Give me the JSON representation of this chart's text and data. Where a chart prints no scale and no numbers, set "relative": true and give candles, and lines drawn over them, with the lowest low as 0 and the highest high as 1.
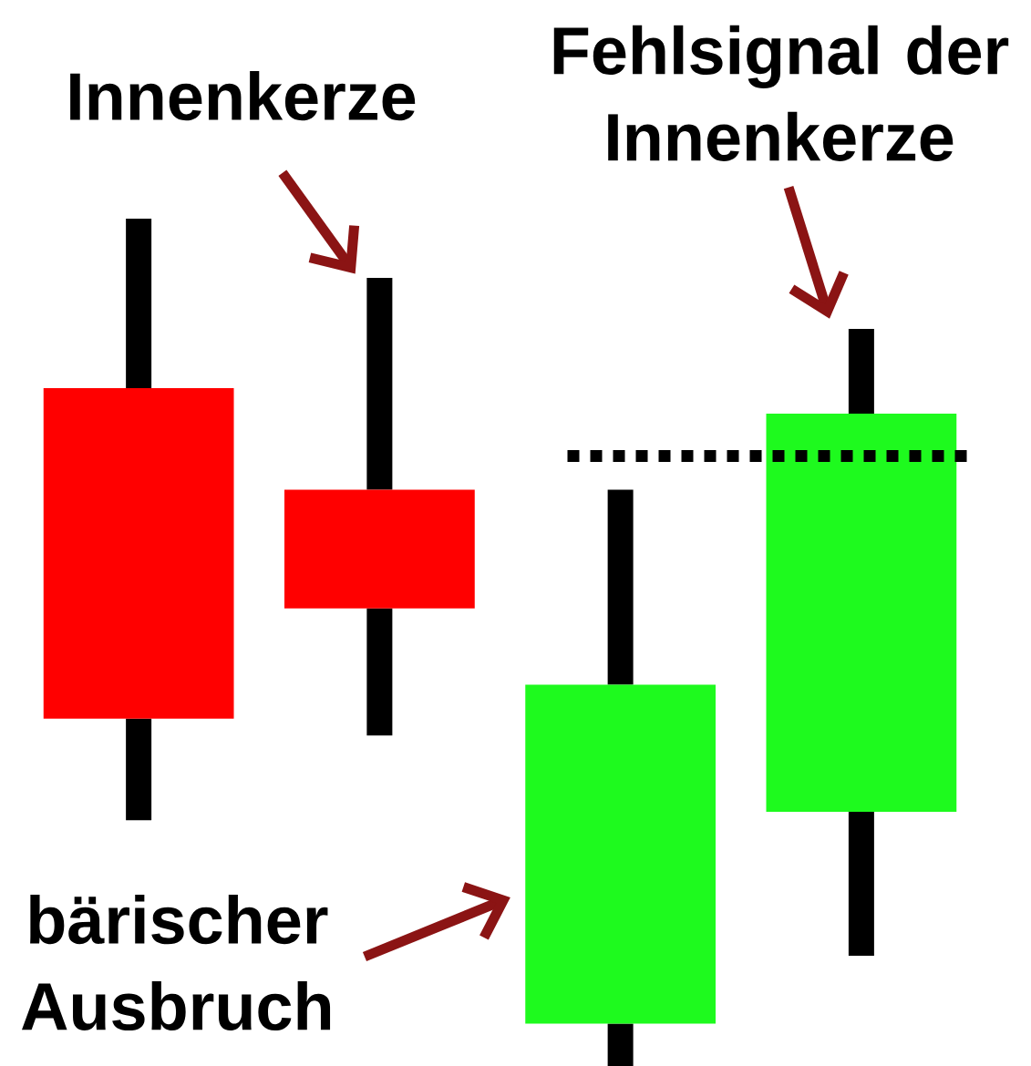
{
  "chart_data": {
    "type": "candlestick",
    "relative": true,
    "categories": [
      null,
      null,
      null,
      null
    ],
    "ohlc": [
      [
        0.8,
        1.0,
        0.29,
        0.41
      ],
      [
        0.68,
        0.93,
        0.39,
        0.54
      ],
      [
        0.05,
        0.68,
        0.0,
        0.45
      ],
      [
        0.3,
        0.87,
        0.13,
        0.77
      ]
    ],
    "colors": [
      "#ff0000",
      "#ff0000",
      "#1efa1e",
      "#1efa1e"
    ],
    "ref_lines": [
      {
        "axis": "y",
        "value": 0.72,
        "line_style": "dotted",
        "color": "#000000"
      }
    ],
    "annotations": [
      "Innenkerze",
      "Fehlsignal der Innenkerze",
      "bärischer Ausbruch"
    ]
  }
}
